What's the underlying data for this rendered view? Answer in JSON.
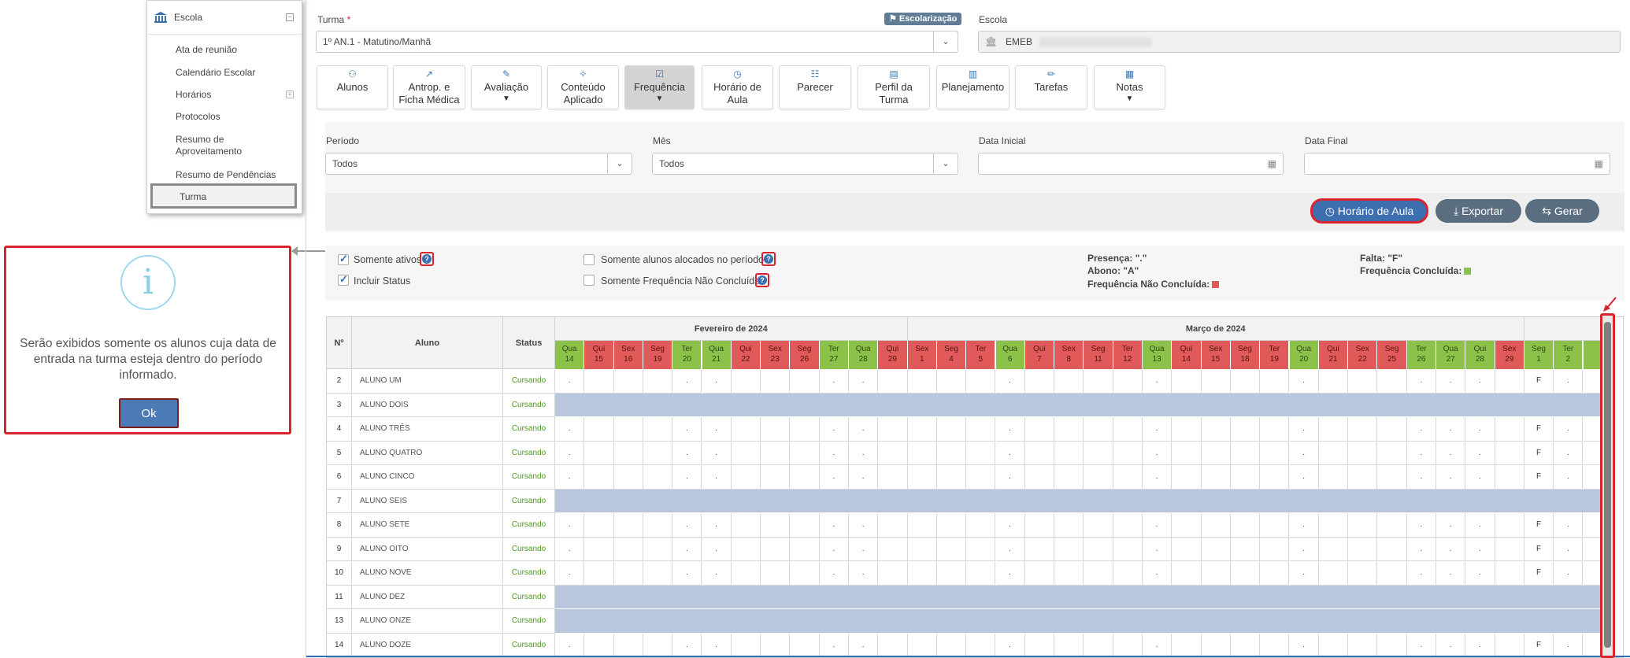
{
  "sidebar": {
    "header": "Escola",
    "items": [
      {
        "label": "Ata de reunião",
        "has_children": false
      },
      {
        "label": "Calendário Escolar",
        "has_children": false
      },
      {
        "label": "Horários",
        "has_children": true
      },
      {
        "label": "Protocolos",
        "has_children": false
      },
      {
        "label": "Resumo de Aproveitamento",
        "has_children": false
      },
      {
        "label": "Resumo de Pendências",
        "has_children": false
      },
      {
        "label": "Turma",
        "has_children": false,
        "active": true
      }
    ]
  },
  "dialog": {
    "icon": "info-icon",
    "message": "Serão exibidos somente os alunos cuja data de entrada na turma esteja dentro do período informado.",
    "ok_label": "Ok"
  },
  "form": {
    "turma_label": "Turma",
    "turma_required": "*",
    "turma_value": "1º AN.1 - Matutino/Manhã",
    "escolarizacao_badge": "Escolarização",
    "escola_label": "Escola",
    "escola_value": "EMEB"
  },
  "tabs": [
    {
      "line1": "Alunos",
      "line2": "",
      "icon": "users-icon",
      "dropdown": false,
      "active": false
    },
    {
      "line1": "Antrop. e",
      "line2": "Ficha Médica",
      "icon": "chart-line-icon",
      "dropdown": false,
      "active": false
    },
    {
      "line1": "Avaliação",
      "line2": "",
      "icon": "edit-icon",
      "dropdown": true,
      "active": false
    },
    {
      "line1": "Conteúdo",
      "line2": "Aplicado",
      "icon": "magic-icon",
      "dropdown": false,
      "active": false
    },
    {
      "line1": "Frequência",
      "line2": "",
      "icon": "check-square-icon",
      "dropdown": true,
      "active": true
    },
    {
      "line1": "Horário de",
      "line2": "Aula",
      "icon": "clock-icon",
      "dropdown": false,
      "active": false
    },
    {
      "line1": "Parecer",
      "line2": "",
      "icon": "file-icon",
      "dropdown": false,
      "active": false
    },
    {
      "line1": "Perfil da",
      "line2": "Turma",
      "icon": "id-card-icon",
      "dropdown": false,
      "active": false
    },
    {
      "line1": "Planejamento",
      "line2": "",
      "icon": "book-icon",
      "dropdown": false,
      "active": false
    },
    {
      "line1": "Tarefas",
      "line2": "",
      "icon": "pencil-icon",
      "dropdown": false,
      "active": false
    },
    {
      "line1": "Notas",
      "line2": "",
      "icon": "table-icon",
      "dropdown": true,
      "active": false
    }
  ],
  "filters": {
    "periodo_label": "Período",
    "periodo_value": "Todos",
    "mes_label": "Mês",
    "mes_value": "Todos",
    "data_inicial_label": "Data Inicial",
    "data_final_label": "Data Final"
  },
  "actions": {
    "horario_label": "Horário de Aula",
    "exportar_label": "Exportar",
    "gerar_label": "Gerar"
  },
  "options": {
    "somente_ativos": {
      "label": "Somente ativos",
      "checked": true
    },
    "incluir_status": {
      "label": "Incluir Status",
      "checked": true
    },
    "somente_alocados": {
      "label": "Somente alunos alocados no período",
      "checked": false
    },
    "somente_nao_concluida": {
      "label": "Somente Frequência Não Concluída",
      "checked": false
    }
  },
  "legend": {
    "presenca": "Presença: \".\"",
    "abono": "Abono: \"A\"",
    "nao_concluida": "Frequência Não Concluída:",
    "falta": "Falta: \"F\"",
    "concluida": "Frequência Concluída:"
  },
  "colors": {
    "red_day": "#e05a59",
    "green_day": "#8dc24a",
    "inactive_row": "#b8c6de",
    "accent": "#4b7ab5",
    "highlight": "#d9232d"
  },
  "grid": {
    "headers": {
      "n": "Nº",
      "aluno": "Aluno",
      "status": "Status"
    },
    "months": [
      {
        "label": "Fevereiro de 2024",
        "span": 12
      },
      {
        "label": "Março de 2024",
        "span": 21
      },
      {
        "label": "",
        "span": 3
      }
    ],
    "days": [
      {
        "wd": "Qua",
        "d": "14",
        "c": "g"
      },
      {
        "wd": "Qui",
        "d": "15",
        "c": "r"
      },
      {
        "wd": "Sex",
        "d": "16",
        "c": "r"
      },
      {
        "wd": "Seg",
        "d": "19",
        "c": "r"
      },
      {
        "wd": "Ter",
        "d": "20",
        "c": "g"
      },
      {
        "wd": "Qua",
        "d": "21",
        "c": "g"
      },
      {
        "wd": "Qui",
        "d": "22",
        "c": "r"
      },
      {
        "wd": "Sex",
        "d": "23",
        "c": "r"
      },
      {
        "wd": "Seg",
        "d": "26",
        "c": "r"
      },
      {
        "wd": "Ter",
        "d": "27",
        "c": "g"
      },
      {
        "wd": "Qua",
        "d": "28",
        "c": "g"
      },
      {
        "wd": "Qui",
        "d": "29",
        "c": "r"
      },
      {
        "wd": "Sex",
        "d": "1",
        "c": "r"
      },
      {
        "wd": "Seg",
        "d": "4",
        "c": "r"
      },
      {
        "wd": "Ter",
        "d": "5",
        "c": "r"
      },
      {
        "wd": "Qua",
        "d": "6",
        "c": "g"
      },
      {
        "wd": "Qui",
        "d": "7",
        "c": "r"
      },
      {
        "wd": "Sex",
        "d": "8",
        "c": "r"
      },
      {
        "wd": "Seg",
        "d": "11",
        "c": "r"
      },
      {
        "wd": "Ter",
        "d": "12",
        "c": "r"
      },
      {
        "wd": "Qua",
        "d": "13",
        "c": "g"
      },
      {
        "wd": "Qui",
        "d": "14",
        "c": "r"
      },
      {
        "wd": "Sex",
        "d": "15",
        "c": "r"
      },
      {
        "wd": "Seg",
        "d": "18",
        "c": "r"
      },
      {
        "wd": "Ter",
        "d": "19",
        "c": "r"
      },
      {
        "wd": "Qua",
        "d": "20",
        "c": "g"
      },
      {
        "wd": "Qui",
        "d": "21",
        "c": "r"
      },
      {
        "wd": "Sex",
        "d": "22",
        "c": "r"
      },
      {
        "wd": "Seg",
        "d": "25",
        "c": "r"
      },
      {
        "wd": "Ter",
        "d": "26",
        "c": "g"
      },
      {
        "wd": "Qua",
        "d": "27",
        "c": "g"
      },
      {
        "wd": "Qui",
        "d": "28",
        "c": "g"
      },
      {
        "wd": "Sex",
        "d": "29",
        "c": "r"
      },
      {
        "wd": "Seg",
        "d": "1",
        "c": "g"
      },
      {
        "wd": "Ter",
        "d": "2",
        "c": "g"
      },
      {
        "wd": "",
        "d": "",
        "c": "g"
      }
    ],
    "rows": [
      {
        "n": "2",
        "aluno": "ALUNO UM",
        "status": "Cursando",
        "active": true
      },
      {
        "n": "3",
        "aluno": "ALUNO DOIS",
        "status": "Cursando",
        "active": false
      },
      {
        "n": "4",
        "aluno": "ALUNO TRÊS",
        "status": "Cursando",
        "active": true
      },
      {
        "n": "5",
        "aluno": "ALUNO QUATRO",
        "status": "Cursando",
        "active": true
      },
      {
        "n": "6",
        "aluno": "ALUNO CINCO",
        "status": "Cursando",
        "active": true
      },
      {
        "n": "7",
        "aluno": "ALUNO SEIS",
        "status": "Cursando",
        "active": false
      },
      {
        "n": "8",
        "aluno": "ALUNO SETE",
        "status": "Cursando",
        "active": true
      },
      {
        "n": "9",
        "aluno": "ALUNO OITO",
        "status": "Cursando",
        "active": true
      },
      {
        "n": "10",
        "aluno": "ALUNO NOVE",
        "status": "Cursando",
        "active": true
      },
      {
        "n": "11",
        "aluno": "ALUNO DEZ",
        "status": "Cursando",
        "active": false
      },
      {
        "n": "13",
        "aluno": "ALUNO ONZE",
        "status": "Cursando",
        "active": false
      },
      {
        "n": "14",
        "aluno": "ALUNO DOZE",
        "status": "Cursando",
        "active": true
      }
    ],
    "presence_mark": ".",
    "falta_mark": "F"
  }
}
